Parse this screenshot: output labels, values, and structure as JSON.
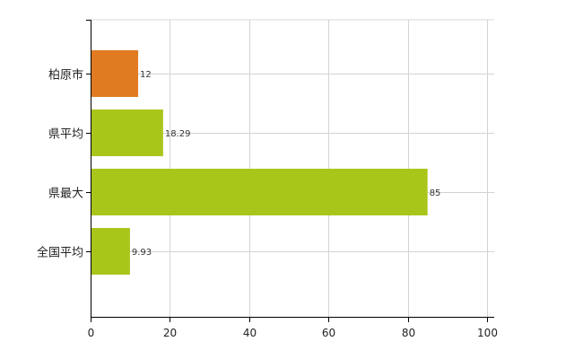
{
  "chart_data": {
    "type": "bar",
    "orientation": "horizontal",
    "categories": [
      "柏原市",
      "県平均",
      "県最大",
      "全国平均"
    ],
    "values": [
      12,
      18.29,
      85,
      9.93
    ],
    "value_labels": [
      "12",
      "18.29",
      "85",
      "9.93"
    ],
    "bar_colors": [
      "#e07b22",
      "#a8c61a",
      "#a8c61a",
      "#a8c61a"
    ],
    "xlim": [
      0,
      100
    ],
    "x_ticks": [
      0,
      20,
      40,
      60,
      80,
      100
    ],
    "x_tick_labels": [
      "0",
      "20",
      "40",
      "60",
      "80",
      "100"
    ],
    "grid": true,
    "title": "",
    "xlabel": "",
    "ylabel": ""
  }
}
